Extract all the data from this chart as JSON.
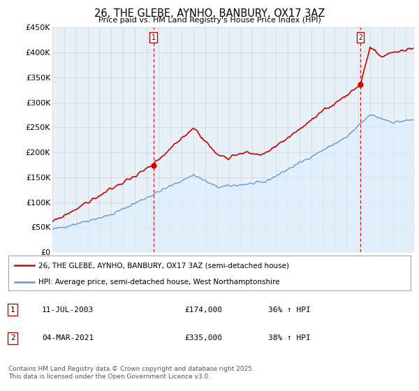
{
  "title": "26, THE GLEBE, AYNHO, BANBURY, OX17 3AZ",
  "subtitle": "Price paid vs. HM Land Registry's House Price Index (HPI)",
  "ylabel_ticks": [
    "£0",
    "£50K",
    "£100K",
    "£150K",
    "£200K",
    "£250K",
    "£300K",
    "£350K",
    "£400K",
    "£450K"
  ],
  "ytick_values": [
    0,
    50000,
    100000,
    150000,
    200000,
    250000,
    300000,
    350000,
    400000,
    450000
  ],
  "ylim": [
    0,
    450000
  ],
  "property_color": "#cc0000",
  "hpi_color": "#6699cc",
  "hpi_fill_color": "#ddeeff",
  "legend_property": "26, THE GLEBE, AYNHO, BANBURY, OX17 3AZ (semi-detached house)",
  "legend_hpi": "HPI: Average price, semi-detached house, West Northamptonshire",
  "annotation1": "11-JUL-2003",
  "annotation1_val": "£174,000",
  "annotation1_pct": "36% ↑ HPI",
  "annotation2": "04-MAR-2021",
  "annotation2_val": "£335,000",
  "annotation2_pct": "38% ↑ HPI",
  "footer": "Contains HM Land Registry data © Crown copyright and database right 2025.\nThis data is licensed under the Open Government Licence v3.0.",
  "background_color": "#ffffff",
  "chart_bg_color": "#e8f0f8",
  "grid_color": "#c8d4e0"
}
